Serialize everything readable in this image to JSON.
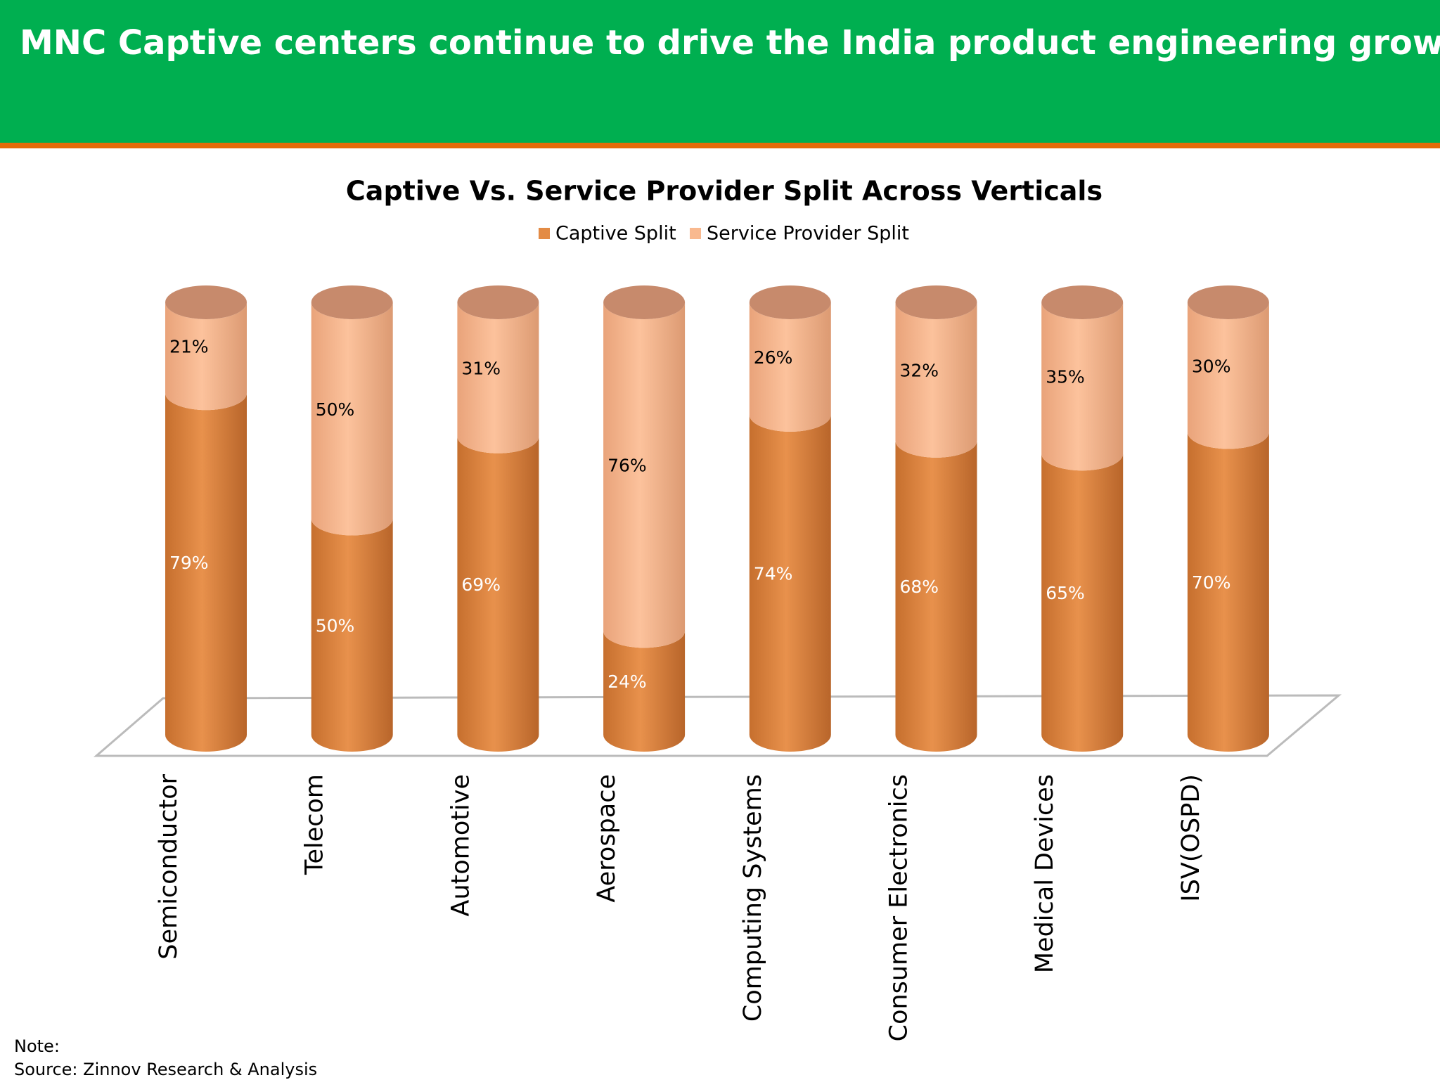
{
  "header": {
    "title": "MNC Captive centers continue to drive the India product engineering growth story"
  },
  "chart_data": {
    "type": "stacked-cylinder",
    "title": "Captive Vs. Service Provider Split Across Verticals",
    "categories": [
      "Semiconductor",
      "Telecom",
      "Automotive",
      "Aerospace",
      "Computing Systems",
      "Consumer Electronics",
      "Medical Devices",
      "ISV(OSPD)"
    ],
    "series": [
      {
        "name": "Captive Split",
        "color": "#e38b45",
        "values": [
          79,
          50,
          69,
          24,
          74,
          68,
          65,
          70
        ],
        "value_labels": [
          "79%",
          "50%",
          "69%",
          "24%",
          "74%",
          "68%",
          "65%",
          "70%"
        ]
      },
      {
        "name": "Service Provider Split",
        "color": "#f9b98f",
        "values": [
          21,
          50,
          31,
          76,
          26,
          32,
          35,
          30
        ],
        "value_labels": [
          "21%",
          "50%",
          "31%",
          "76%",
          "26%",
          "32%",
          "35%",
          "30%"
        ]
      }
    ]
  },
  "footer": {
    "note": "Note:",
    "source": "Source: Zinnov Research & Analysis"
  }
}
